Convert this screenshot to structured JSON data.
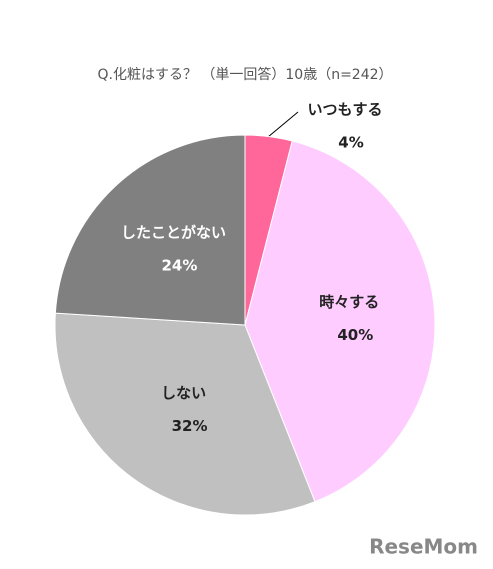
{
  "chart_data": {
    "type": "pie",
    "title": "Q.化粧はする？ （単一回答）10歳（n=242）",
    "categories": [
      "いつもする",
      "時々する",
      "しない",
      "したことがない"
    ],
    "values": [
      4,
      40,
      32,
      24
    ],
    "value_labels": [
      "4%",
      "40%",
      "32%",
      "24%"
    ],
    "colors": [
      "#ff6699",
      "#ffccff",
      "#c0c0c0",
      "#808080"
    ],
    "watermark": "ReseMom"
  }
}
